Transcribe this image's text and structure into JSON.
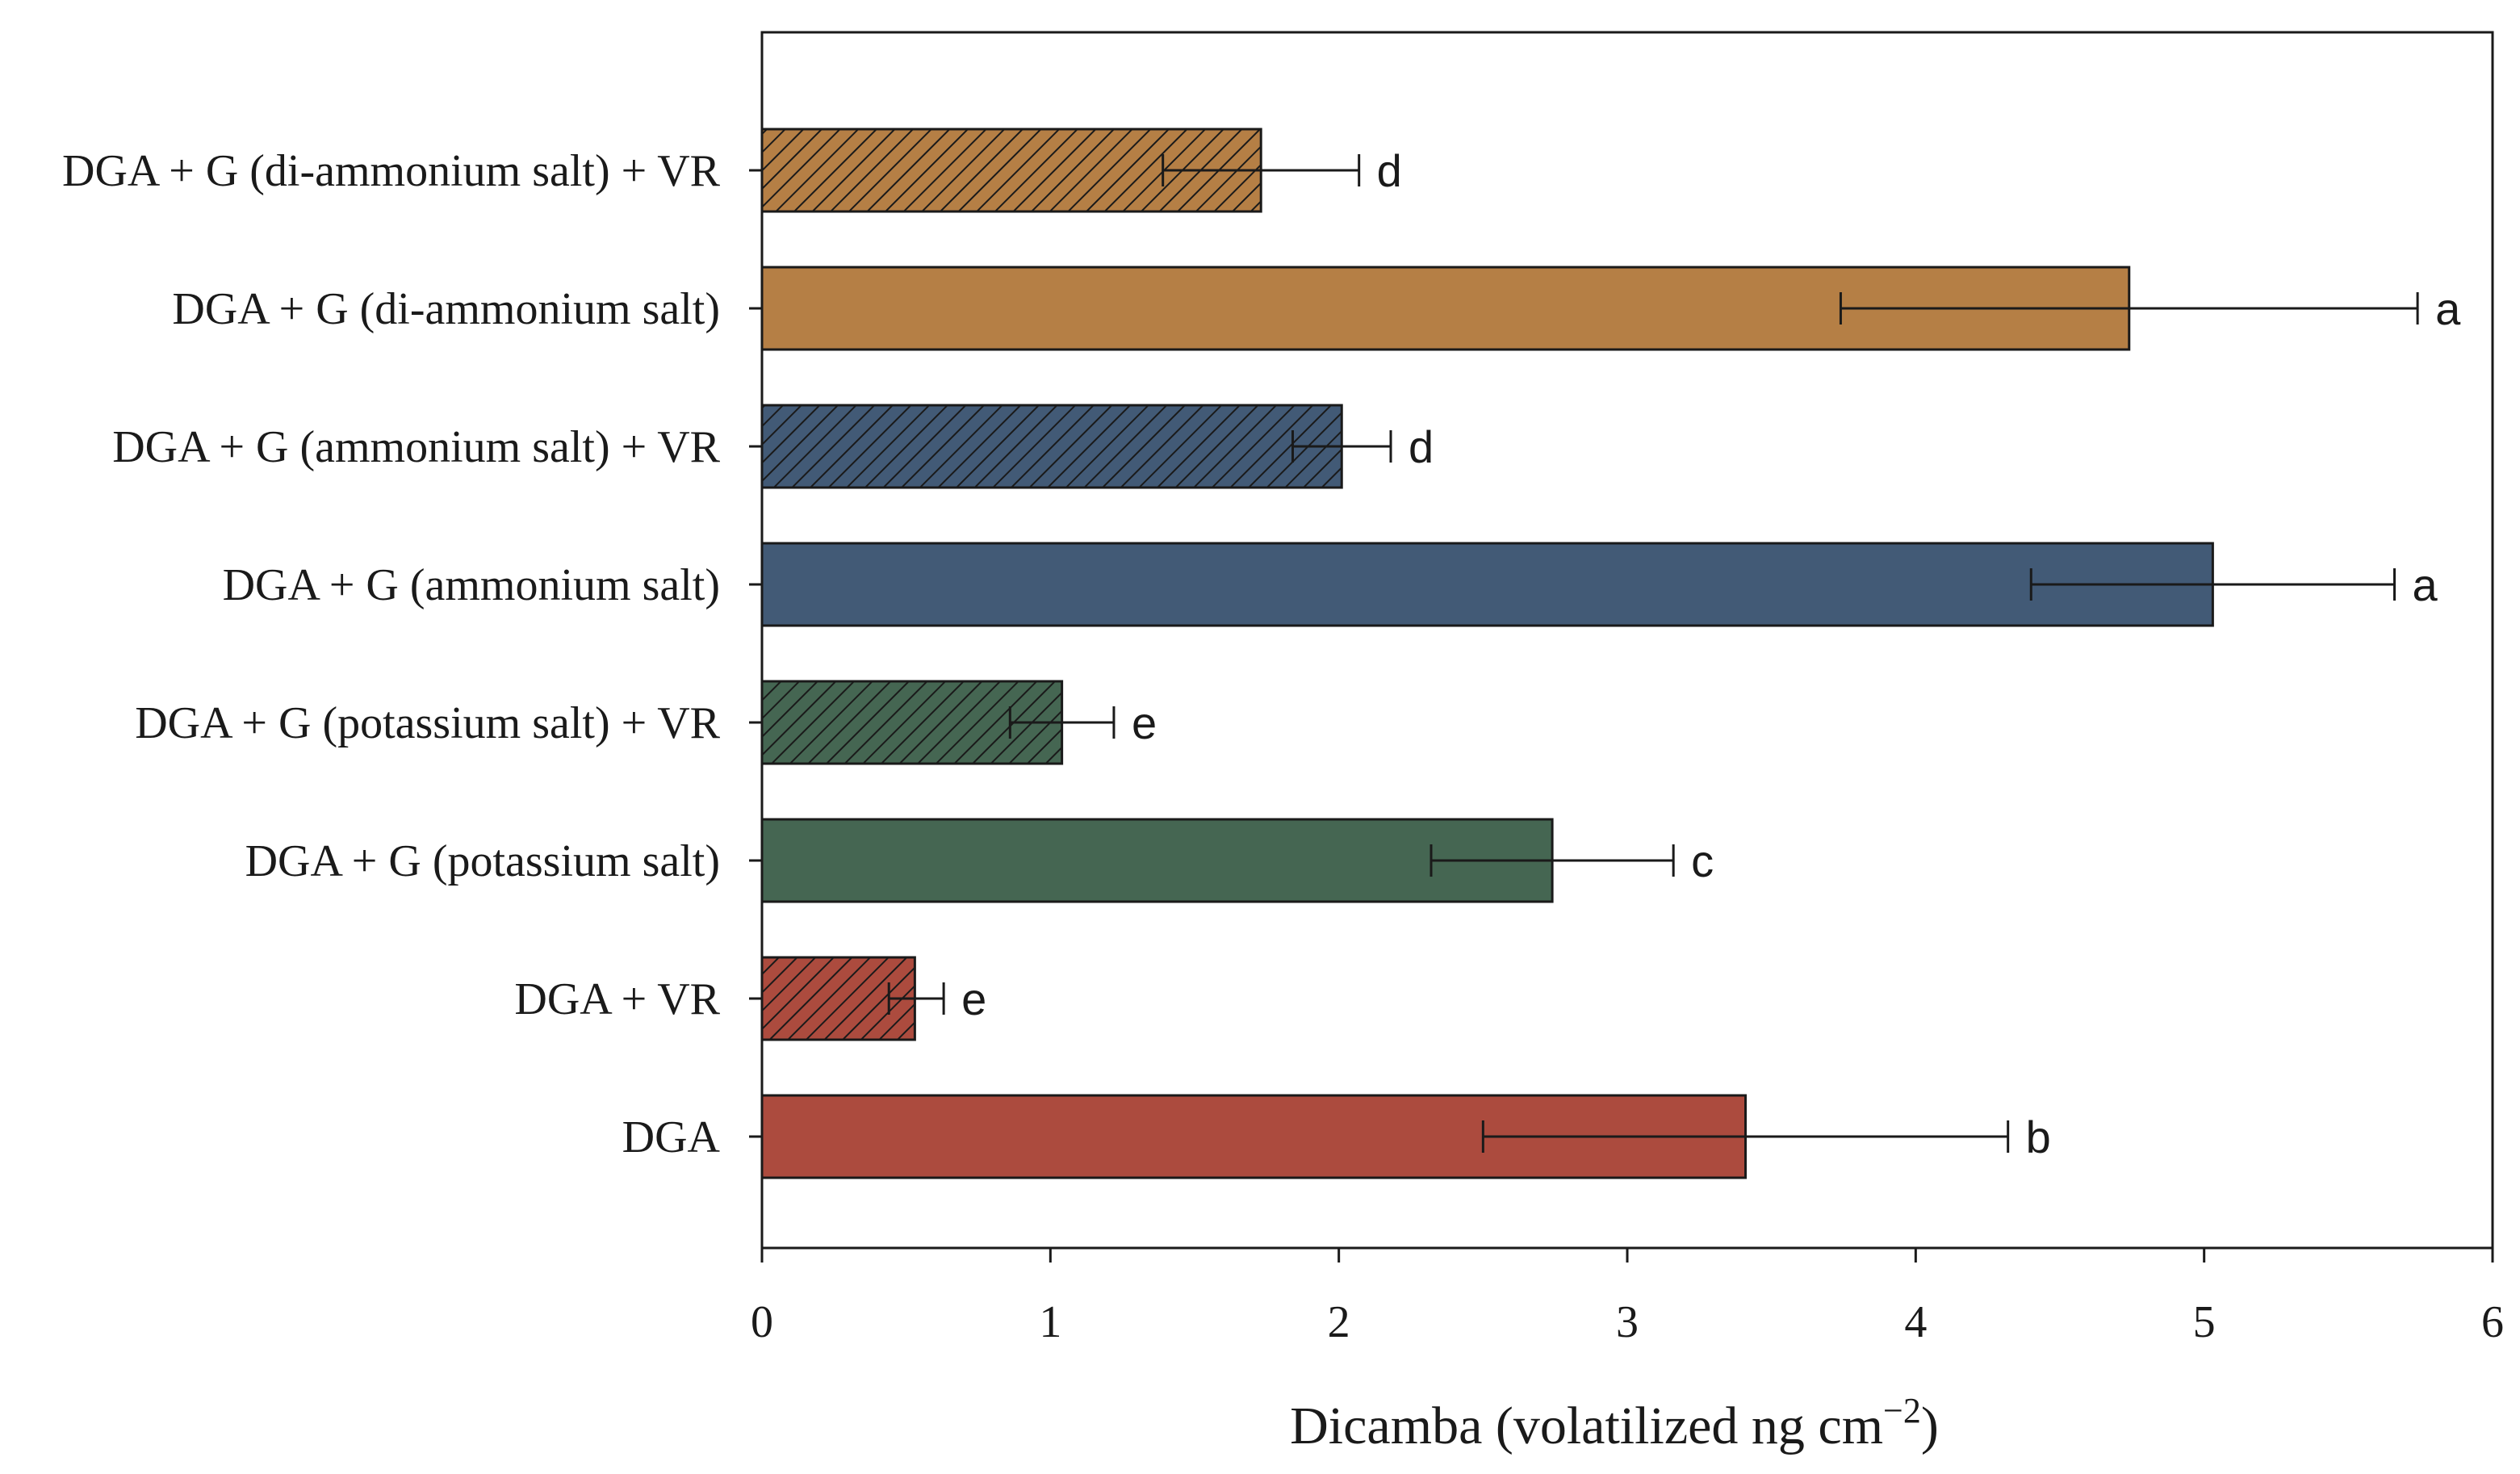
{
  "chart_data": {
    "type": "bar",
    "orientation": "horizontal",
    "title": "",
    "xlabel_main": "Dicamba (volatilized ng cm",
    "xlabel_sup": "−2",
    "xlabel_close": ")",
    "ylabel": "",
    "xlim": [
      0,
      6
    ],
    "xticks": [
      "0",
      "1",
      "2",
      "3",
      "4",
      "5",
      "6"
    ],
    "grid": false,
    "legend": "none",
    "categories": [
      "DGA + G (di-ammonium salt) + VR",
      "DGA + G (di-ammonium salt)",
      "DGA + G (ammonium salt) + VR",
      "DGA + G (ammonium salt)",
      "DGA + G (potassium salt) + VR",
      "DGA + G (potassium salt)",
      "DGA + VR",
      "DGA"
    ],
    "values": [
      1.73,
      4.74,
      2.01,
      5.03,
      1.04,
      2.74,
      0.53,
      3.41
    ],
    "error_low": [
      1.39,
      3.74,
      1.84,
      4.4,
      0.86,
      2.32,
      0.44,
      2.5
    ],
    "error_high": [
      2.07,
      5.74,
      2.18,
      5.66,
      1.22,
      3.16,
      0.63,
      4.32
    ],
    "significance": [
      "d",
      "a",
      "d",
      "a",
      "e",
      "c",
      "e",
      "b"
    ],
    "colors": [
      "#b57f45",
      "#b57f45",
      "#425a76",
      "#425a76",
      "#456652",
      "#456652",
      "#ac4b3e",
      "#ac4b3e"
    ],
    "hatched": [
      true,
      false,
      true,
      false,
      true,
      false,
      true,
      false
    ]
  }
}
